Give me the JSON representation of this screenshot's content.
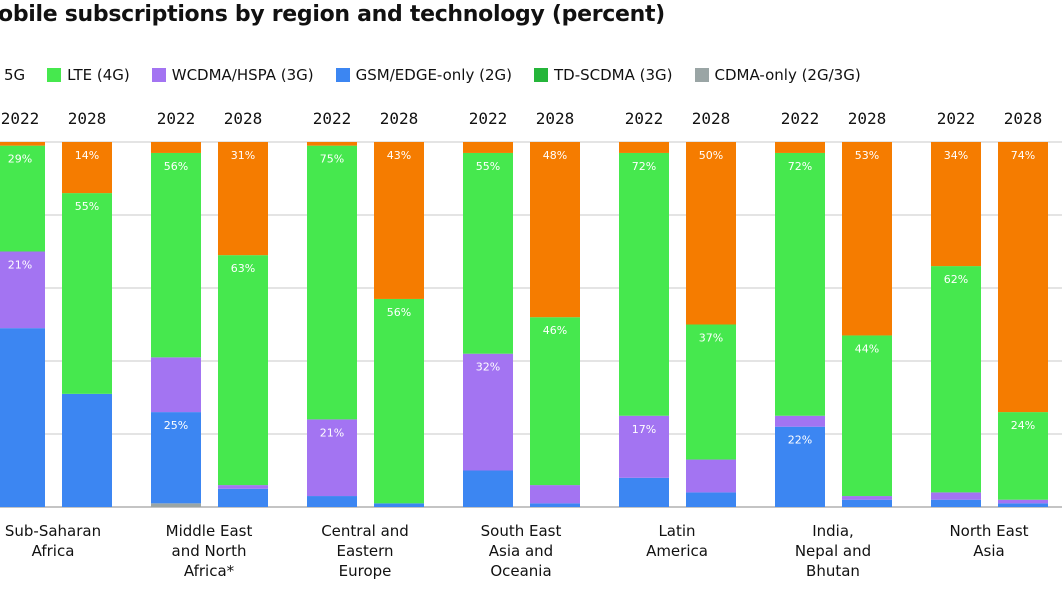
{
  "chart_data": {
    "type": "bar",
    "stacked": true,
    "title": "obile subscriptions by region and technology (percent)",
    "ylim": [
      0,
      100
    ],
    "grid": true,
    "legend_placement": "top",
    "series_names": [
      "5G",
      "LTE (4G)",
      "WCDMA/HSPA (3G)",
      "GSM/EDGE-only (2G)",
      "TD-SCDMA (3G)",
      "CDMA-only (2G/3G)"
    ],
    "colors": {
      "5G": "#f57c00",
      "LTE (4G)": "#46e84e",
      "WCDMA/HSPA (3G)": "#a374f2",
      "GSM/EDGE-only (2G)": "#3c86f2",
      "TD-SCDMA (3G)": "#25b53a",
      "CDMA-only (2G/3G)": "#9aa5a5"
    },
    "stack_order_bottom_up": [
      "CDMA-only (2G/3G)",
      "GSM/EDGE-only (2G)",
      "TD-SCDMA (3G)",
      "WCDMA/HSPA (3G)",
      "LTE (4G)",
      "5G"
    ],
    "groups": [
      {
        "region": [
          "Sub-Saharan",
          "Africa"
        ],
        "bars": [
          {
            "year": "2022",
            "values": {
              "5G": 1,
              "LTE (4G)": 29,
              "WCDMA/HSPA (3G)": 21,
              "GSM/EDGE-only (2G)": 49
            },
            "labeled": [
              "LTE (4G)",
              "WCDMA/HSPA (3G)"
            ]
          },
          {
            "year": "2028",
            "values": {
              "5G": 14,
              "LTE (4G)": 55,
              "WCDMA/HSPA (3G)": 0,
              "GSM/EDGE-only (2G)": 31
            },
            "labeled": [
              "5G",
              "LTE (4G)"
            ]
          }
        ]
      },
      {
        "region": [
          "Middle East",
          "and North",
          "Africa*"
        ],
        "bars": [
          {
            "year": "2022",
            "values": {
              "5G": 3,
              "LTE (4G)": 56,
              "WCDMA/HSPA (3G)": 15,
              "GSM/EDGE-only (2G)": 25,
              "CDMA-only (2G/3G)": 1
            },
            "labeled": [
              "LTE (4G)",
              "GSM/EDGE-only (2G)"
            ]
          },
          {
            "year": "2028",
            "values": {
              "5G": 31,
              "LTE (4G)": 63,
              "WCDMA/HSPA (3G)": 1,
              "GSM/EDGE-only (2G)": 5
            },
            "labeled": [
              "5G",
              "LTE (4G)"
            ]
          }
        ]
      },
      {
        "region": [
          "Central and",
          "Eastern",
          "Europe"
        ],
        "bars": [
          {
            "year": "2022",
            "values": {
              "5G": 1,
              "LTE (4G)": 75,
              "WCDMA/HSPA (3G)": 21,
              "GSM/EDGE-only (2G)": 3
            },
            "labeled": [
              "LTE (4G)",
              "WCDMA/HSPA (3G)"
            ]
          },
          {
            "year": "2028",
            "values": {
              "5G": 43,
              "LTE (4G)": 56,
              "WCDMA/HSPA (3G)": 0,
              "GSM/EDGE-only (2G)": 1
            },
            "labeled": [
              "5G",
              "LTE (4G)"
            ]
          }
        ]
      },
      {
        "region": [
          "South East",
          "Asia and",
          "Oceania"
        ],
        "bars": [
          {
            "year": "2022",
            "values": {
              "5G": 3,
              "LTE (4G)": 55,
              "WCDMA/HSPA (3G)": 32,
              "GSM/EDGE-only (2G)": 10
            },
            "labeled": [
              "LTE (4G)",
              "WCDMA/HSPA (3G)"
            ]
          },
          {
            "year": "2028",
            "values": {
              "5G": 48,
              "LTE (4G)": 46,
              "WCDMA/HSPA (3G)": 5,
              "GSM/EDGE-only (2G)": 1
            },
            "labeled": [
              "5G",
              "LTE (4G)"
            ]
          }
        ]
      },
      {
        "region": [
          "Latin",
          "America"
        ],
        "bars": [
          {
            "year": "2022",
            "values": {
              "5G": 3,
              "LTE (4G)": 72,
              "WCDMA/HSPA (3G)": 17,
              "GSM/EDGE-only (2G)": 8
            },
            "labeled": [
              "LTE (4G)",
              "WCDMA/HSPA (3G)"
            ]
          },
          {
            "year": "2028",
            "values": {
              "5G": 50,
              "LTE (4G)": 37,
              "WCDMA/HSPA (3G)": 9,
              "GSM/EDGE-only (2G)": 4
            },
            "labeled": [
              "5G",
              "LTE (4G)"
            ]
          }
        ]
      },
      {
        "region": [
          "India,",
          "Nepal and",
          "Bhutan"
        ],
        "bars": [
          {
            "year": "2022",
            "values": {
              "5G": 3,
              "LTE (4G)": 72,
              "WCDMA/HSPA (3G)": 3,
              "GSM/EDGE-only (2G)": 22
            },
            "labeled": [
              "LTE (4G)",
              "GSM/EDGE-only (2G)"
            ]
          },
          {
            "year": "2028",
            "values": {
              "5G": 53,
              "LTE (4G)": 44,
              "WCDMA/HSPA (3G)": 1,
              "GSM/EDGE-only (2G)": 2
            },
            "labeled": [
              "5G",
              "LTE (4G)"
            ]
          }
        ]
      },
      {
        "region": [
          "North East",
          "Asia"
        ],
        "bars": [
          {
            "year": "2022",
            "values": {
              "5G": 34,
              "LTE (4G)": 62,
              "WCDMA/HSPA (3G)": 2,
              "GSM/EDGE-only (2G)": 2
            },
            "labeled": [
              "5G",
              "LTE (4G)"
            ]
          },
          {
            "year": "2028",
            "values": {
              "5G": 74,
              "LTE (4G)": 24,
              "WCDMA/HSPA (3G)": 1,
              "GSM/EDGE-only (2G)": 1
            },
            "labeled": [
              "5G",
              "LTE (4G)"
            ]
          }
        ]
      }
    ]
  }
}
